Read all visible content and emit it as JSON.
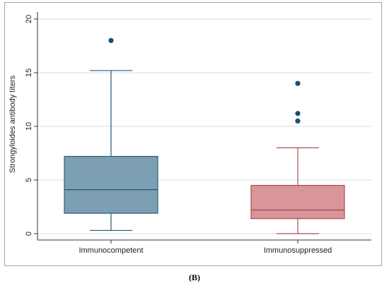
{
  "caption": "(B)",
  "chart_data": {
    "type": "box",
    "ylabel": "Strongyloides antibody titers",
    "ylim": [
      0,
      20
    ],
    "yticks": [
      0,
      5,
      10,
      15,
      20
    ],
    "grid": "horizontal",
    "categories": [
      "Immunocompetent",
      "Immunosuppressed"
    ],
    "boxes": [
      {
        "category": "Immunocompetent",
        "whisker_low": 0.3,
        "q1": 1.9,
        "median": 4.1,
        "q3": 7.2,
        "whisker_high": 15.2,
        "outliers": [
          18.0
        ],
        "fill": "#7d9fb3",
        "stroke": "#2e5a75"
      },
      {
        "category": "Immunosuppressed",
        "whisker_low": 0.0,
        "q1": 1.4,
        "median": 2.2,
        "q3": 4.5,
        "whisker_high": 8.0,
        "outliers": [
          10.5,
          11.2,
          14.0
        ],
        "fill": "#d8959a",
        "stroke": "#b04a54"
      }
    ],
    "outlier_color": "#1d4e6b"
  }
}
